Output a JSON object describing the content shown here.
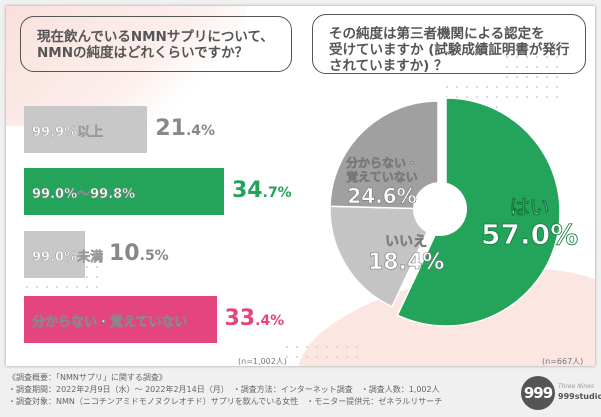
{
  "left_question": {
    "line1": "現在飲んでいるNMNサプリについて、",
    "line2": "NMNの純度はどれくらいですか？"
  },
  "right_question": {
    "line1": "その純度は第三者機関による認定を",
    "line2": "受けていますか (試験成績証明書が発行",
    "line3": "されていますか) ？"
  },
  "chart_data": [
    {
      "type": "bar",
      "orientation": "horizontal",
      "categories": [
        "99.9%以上",
        "99.0%～99.8%",
        "99.0%未満",
        "分からない・覚えていない"
      ],
      "values": [
        21.4,
        34.7,
        10.5,
        33.4
      ],
      "value_labels": [
        {
          "int": "21",
          "dec": ".4%"
        },
        {
          "int": "34",
          "dec": ".7%"
        },
        {
          "int": "10",
          "dec": ".5%"
        },
        {
          "int": "33",
          "dec": ".4%"
        }
      ],
      "colors": [
        "#c8c8c8",
        "#24a35a",
        "#c8c8c8",
        "#e4457e"
      ],
      "value_colors": [
        "#888888",
        "#24a35a",
        "#888888",
        "#e4457e"
      ],
      "n_label": "(n=1,002人)"
    },
    {
      "type": "pie",
      "categories": [
        "はい",
        "いいえ",
        "分からない・覚えていない"
      ],
      "values": [
        57.0,
        18.4,
        24.6
      ],
      "label_lines": [
        [
          "はい"
        ],
        [
          "いいえ"
        ],
        [
          "分からない・",
          "覚えていない"
        ]
      ],
      "value_labels": [
        "57.0%",
        "18.4%",
        "24.6%"
      ],
      "colors": [
        "#24a35a",
        "#c4c4c4",
        "#a0a0a0"
      ],
      "n_label": "(n=667人)"
    }
  ],
  "footer": {
    "line1": "《調査概要：「NMNサプリ」に関する調査》",
    "line2": "・調査期間：2022年2月9日（水）～ 2022年2月14日（月）　・調査方法：インターネット調査　・調査人数：1,002人",
    "line3": "・調査対象：NMN（ニコチンアミドモノヌクレオチド）サプリを飲んでいる女性　・モニター提供元：ゼネラルリサーチ"
  },
  "logo": {
    "mark": "999",
    "sub": "Three Nines",
    "name": "999studio"
  }
}
